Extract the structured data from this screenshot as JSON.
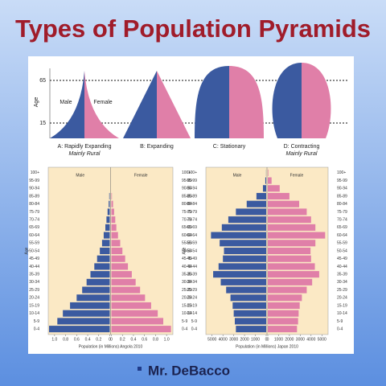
{
  "title": "Types of Population Pyramids",
  "author": "Mr. DeBacco",
  "diagram": {
    "axis_label": "Age",
    "age_marks": [
      "65",
      "15"
    ],
    "male": "Male",
    "female": "Female",
    "shapes": [
      {
        "label": "A: Rapidly Expanding",
        "note": "Mainly Rural"
      },
      {
        "label": "B: Expanding"
      },
      {
        "label": "C: Stationary"
      },
      {
        "label": "D: Contracting",
        "note": "Mainly Rural"
      }
    ]
  },
  "chart_data": [
    {
      "type": "pyramid",
      "xlabel": "Population (in Millions) Angola 2010",
      "ylabel": "Age",
      "categories": [
        "0-4",
        "5-9",
        "10-14",
        "15-19",
        "20-24",
        "25-29",
        "30-34",
        "35-39",
        "40-44",
        "45-49",
        "50-54",
        "55-59",
        "60-64",
        "65-69",
        "70-74",
        "75-79",
        "80-84",
        "85-89",
        "90-94",
        "95-99",
        "100+"
      ],
      "series": [
        {
          "name": "Male",
          "color": "#3b5aa0",
          "values": [
            1.1,
            0.95,
            0.85,
            0.72,
            0.6,
            0.5,
            0.42,
            0.35,
            0.28,
            0.23,
            0.18,
            0.14,
            0.11,
            0.08,
            0.06,
            0.04,
            0.02,
            0.01,
            0,
            0,
            0
          ]
        },
        {
          "name": "Female",
          "color": "#e07fa8",
          "values": [
            1.08,
            0.94,
            0.84,
            0.72,
            0.61,
            0.52,
            0.44,
            0.37,
            0.3,
            0.25,
            0.2,
            0.16,
            0.12,
            0.09,
            0.07,
            0.05,
            0.03,
            0.01,
            0,
            0,
            0
          ]
        }
      ],
      "xlim": [
        0,
        1.1
      ],
      "xticks": [
        0,
        {
          "value": 0.2,
          "label": "0.2"
        },
        {
          "value": 0.4,
          "label": "0.4"
        },
        {
          "value": 0.6,
          "label": "0.6"
        },
        {
          "value": 0.8,
          "label": "0.8"
        },
        {
          "value": 1,
          "label": "1.0"
        }
      ]
    },
    {
      "type": "pyramid",
      "xlabel": "Population (in Millions) Japan 2010",
      "ylabel": "Age",
      "categories": [
        "0-4",
        "5-9",
        "10-14",
        "15-19",
        "20-24",
        "25-29",
        "30-34",
        "35-39",
        "40-44",
        "45-49",
        "50-54",
        "55-59",
        "60-64",
        "65-69",
        "70-74",
        "75-79",
        "80-84",
        "85-89",
        "90-94",
        "95-99",
        "100+"
      ],
      "series": [
        {
          "name": "Male",
          "color": "#3b5aa0",
          "values": [
            2800,
            2900,
            3000,
            3100,
            3300,
            3700,
            4200,
            4900,
            4400,
            4000,
            3900,
            4300,
            5100,
            4100,
            3500,
            2800,
            1800,
            900,
            300,
            80,
            10
          ]
        },
        {
          "name": "Female",
          "color": "#e07fa8",
          "values": [
            2700,
            2800,
            2850,
            2950,
            3150,
            3600,
            4100,
            4750,
            4350,
            4000,
            3950,
            4400,
            5300,
            4400,
            4000,
            3600,
            2900,
            2000,
            1100,
            350,
            50
          ]
        }
      ],
      "xlim": [
        0,
        5500
      ],
      "xticks": [
        0,
        1000,
        2000,
        3000,
        4000,
        5000
      ]
    }
  ]
}
